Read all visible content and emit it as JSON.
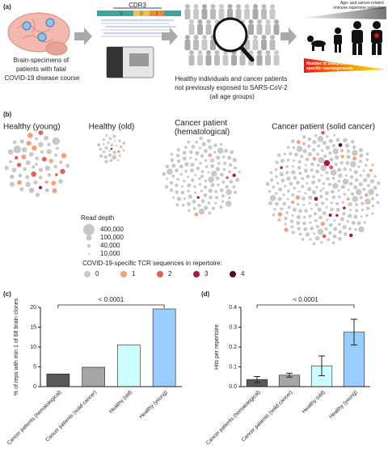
{
  "panel_a": {
    "label": "(a)",
    "brain_text": [
      "Brain-specimens of",
      "patients with fatal",
      "COVID-19 disease course"
    ],
    "cdr3": "CDR3",
    "segments": [
      "V",
      "D",
      "J"
    ],
    "cohort_text": [
      "Healthy individuals and cancer patients",
      "not previously exposed to SARS-CoV-2",
      "(all age groups)"
    ],
    "restriction_text": [
      "Age- and cancer-related",
      "immune repertoire restriction"
    ],
    "rearrangement_text": [
      "Number of SARS-CoV-2-",
      "specific rearrangements"
    ]
  },
  "panel_b": {
    "label": "(b)",
    "groups": [
      [
        "Healthy (young)"
      ],
      [
        "Healthy (old)"
      ],
      [
        "Cancer patient",
        "(hematological)"
      ],
      [
        "Cancer patient (solid cancer)"
      ]
    ],
    "read_depth_title": "Read depth",
    "read_depth": [
      {
        "value": 400000,
        "label": "400,000"
      },
      {
        "value": 100000,
        "label": "100,000"
      },
      {
        "value": 40000,
        "label": "40,000"
      },
      {
        "value": 10000,
        "label": "10,000"
      }
    ],
    "tcr_title": "COVID-19-specific TCR sequences in repertoire:",
    "tcr_counts": [
      0,
      1,
      2,
      3,
      4
    ],
    "tcr_colors": [
      "#c8c8c8",
      "#f4a07a",
      "#e0605a",
      "#a3194a",
      "#5c0b22"
    ]
  },
  "chart_data": [
    {
      "type": "bar",
      "panel": "(c)",
      "ylabel": "% of reps with min 1 of 68 brain clones",
      "categories": [
        "Cancer patients (hematological)",
        "Cancer patients (solid cancer)",
        "Healthy (old)",
        "Healthy (young)"
      ],
      "values": [
        3.2,
        4.9,
        10.5,
        19.6
      ],
      "colors": [
        "#595959",
        "#a6a6a6",
        "#ccffff",
        "#99ccff"
      ],
      "ylim": [
        0,
        20
      ],
      "yticks": [
        0,
        5,
        10,
        15,
        20
      ],
      "annotation": "< 0.0001"
    },
    {
      "type": "bar",
      "panel": "(d)",
      "ylabel": "Hits per repertoire",
      "categories": [
        "Cancer patients (hematological)",
        "Cancer patients (solid cancer)",
        "Healthy (old)",
        "Healthy (young)"
      ],
      "values": [
        0.036,
        0.058,
        0.105,
        0.275
      ],
      "errors": [
        0.015,
        0.01,
        0.05,
        0.065
      ],
      "colors": [
        "#595959",
        "#a6a6a6",
        "#ccffff",
        "#99ccff"
      ],
      "ylim": [
        0,
        0.4
      ],
      "yticks": [
        {
          "value": 0,
          "label": "0.0"
        },
        0.1,
        0.2,
        0.3,
        0.4
      ],
      "annotation": "< 0.0001"
    }
  ]
}
